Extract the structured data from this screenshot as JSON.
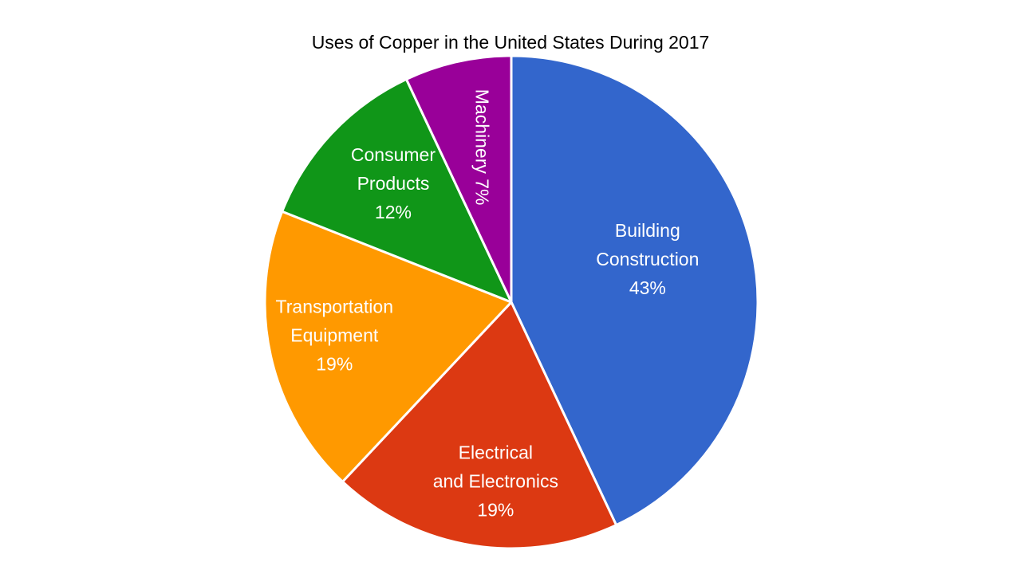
{
  "chart_data": {
    "type": "pie",
    "title": "Uses of Copper in the United States During 2017",
    "slices": [
      {
        "name": "Building Construction",
        "label_lines": [
          "Building",
          "Construction",
          "43%"
        ],
        "value": 43,
        "color": "#3366cc"
      },
      {
        "name": "Electrical and Electronics",
        "label_lines": [
          "Electrical",
          "and Electronics",
          "19%"
        ],
        "value": 19,
        "color": "#dc3912"
      },
      {
        "name": "Transportation Equipment",
        "label_lines": [
          "Transportation",
          "Equipment",
          "19%"
        ],
        "value": 19,
        "color": "#ff9900"
      },
      {
        "name": "Consumer Products",
        "label_lines": [
          "Consumer",
          "Products",
          "12%"
        ],
        "value": 12,
        "color": "#109618"
      },
      {
        "name": "Machinery",
        "label_lines": [
          "Machinery 7%"
        ],
        "value": 7,
        "color": "#990099"
      }
    ],
    "legend": "none"
  }
}
